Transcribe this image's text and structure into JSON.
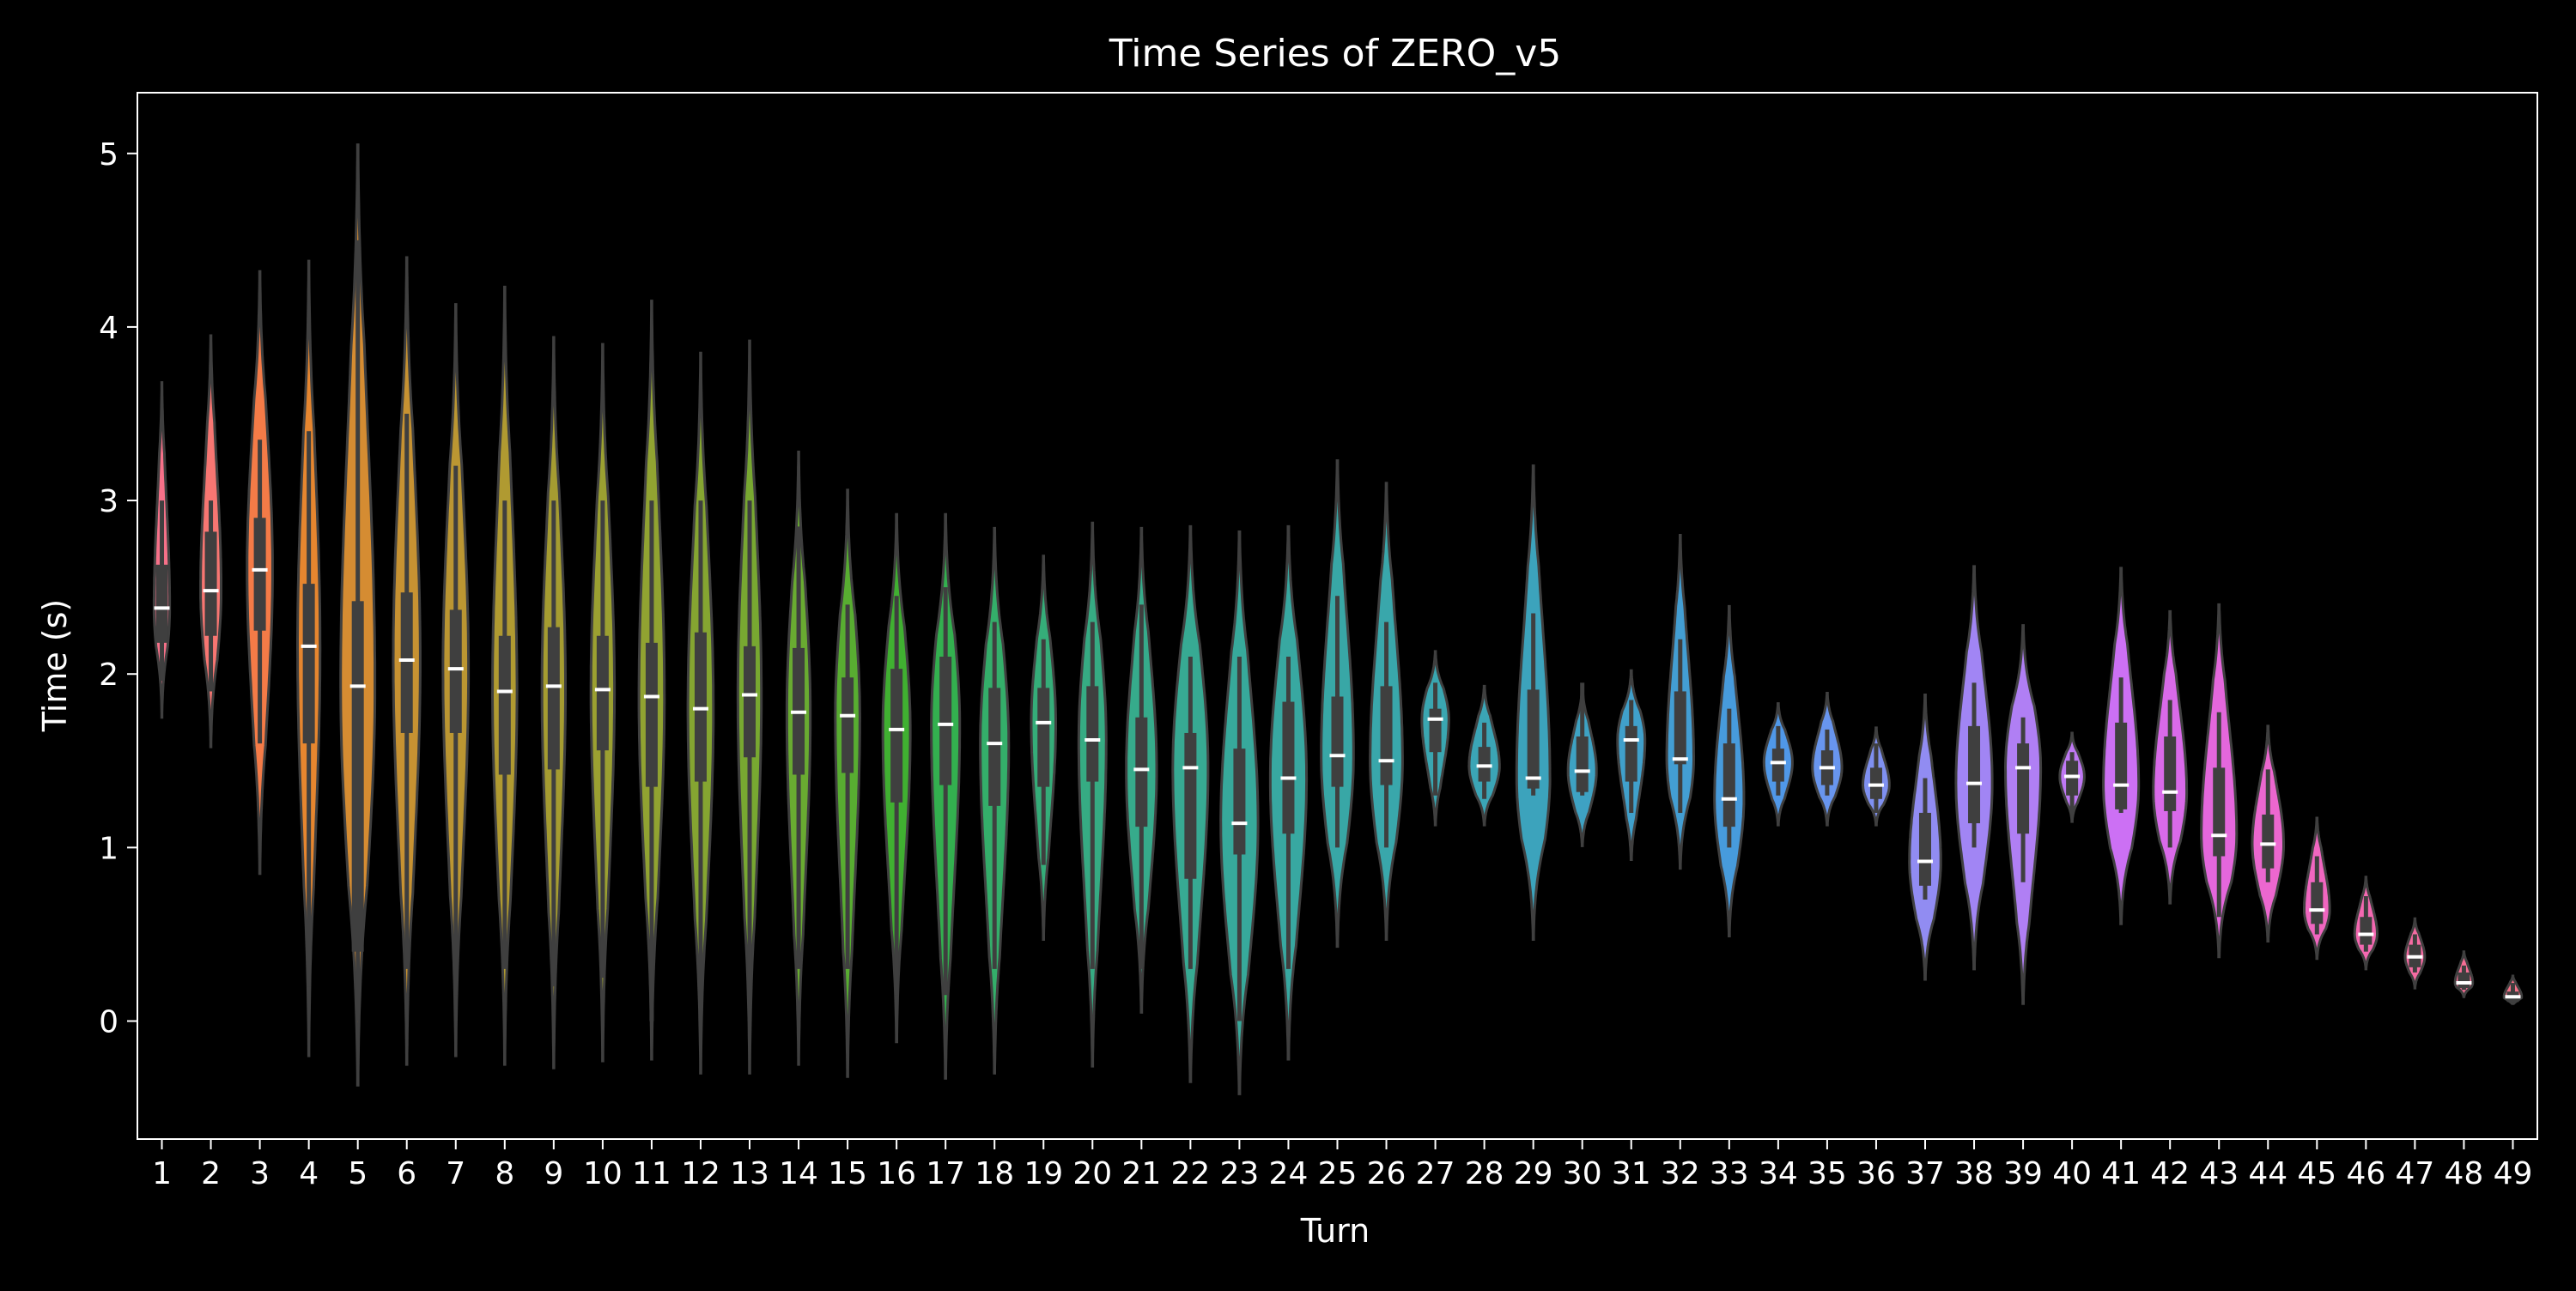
{
  "chart_data": {
    "type": "violin",
    "title": "Time Series of ZERO_v5",
    "xlabel": "Turn",
    "ylabel": "Time (s)",
    "ylim": [
      -0.68,
      5.35
    ],
    "yticks": [
      0,
      1,
      2,
      3,
      4,
      5
    ],
    "grid": false,
    "legend": "none",
    "background": "#000000",
    "categories": [
      "1",
      "2",
      "3",
      "4",
      "5",
      "6",
      "7",
      "8",
      "9",
      "10",
      "11",
      "12",
      "13",
      "14",
      "15",
      "16",
      "17",
      "18",
      "19",
      "20",
      "21",
      "22",
      "23",
      "24",
      "25",
      "26",
      "27",
      "28",
      "29",
      "30",
      "31",
      "32",
      "33",
      "34",
      "35",
      "36",
      "37",
      "38",
      "39",
      "40",
      "41",
      "42",
      "43",
      "44",
      "45",
      "46",
      "47",
      "48",
      "49"
    ],
    "colors": [
      "#f77189",
      "#f77672",
      "#f47b47",
      "#e6862f",
      "#d58c32",
      "#c79232",
      "#bb9632",
      "#b09a31",
      "#a59c31",
      "#9ba031",
      "#91a331",
      "#85a531",
      "#78a831",
      "#69ab31",
      "#58ad31",
      "#40b031",
      "#33b04f",
      "#34ae6a",
      "#35ad79",
      "#36ab83",
      "#36ab8b",
      "#37aa93",
      "#37a99b",
      "#38a8a1",
      "#38a7a6",
      "#39a7ab",
      "#3aa6b1",
      "#3ba5b6",
      "#3ca3bc",
      "#3ea2c3",
      "#40a0cb",
      "#439ed3",
      "#479bdc",
      "#5098e8",
      "#6895ee",
      "#7f90f0",
      "#918cf2",
      "#a185f4",
      "#b07ff4",
      "#bf78f4",
      "#cc70f4",
      "#d96ae9",
      "#e467dc",
      "#ec67cf",
      "#f066c0",
      "#f468b1",
      "#f56ba2",
      "#f66e95",
      "#f77189"
    ],
    "median": [
      2.38,
      2.48,
      2.6,
      2.16,
      1.93,
      2.08,
      2.03,
      1.9,
      1.93,
      1.91,
      1.87,
      1.8,
      1.88,
      1.78,
      1.76,
      1.68,
      1.71,
      1.6,
      1.72,
      1.62,
      1.45,
      1.46,
      1.14,
      1.4,
      1.53,
      1.5,
      1.74,
      1.47,
      1.4,
      1.44,
      1.62,
      1.51,
      1.28,
      1.49,
      1.46,
      1.36,
      0.92,
      1.37,
      1.46,
      1.41,
      1.36,
      1.32,
      1.07,
      1.02,
      0.64,
      0.5,
      0.37,
      0.22,
      0.14
    ],
    "q1": [
      2.18,
      2.22,
      2.25,
      1.6,
      0.4,
      1.66,
      1.66,
      1.42,
      1.45,
      1.56,
      1.35,
      1.38,
      1.52,
      1.42,
      1.43,
      1.26,
      1.36,
      1.24,
      1.35,
      1.38,
      1.12,
      0.82,
      0.96,
      1.08,
      1.35,
      1.36,
      1.55,
      1.38,
      1.34,
      1.32,
      1.38,
      1.48,
      1.12,
      1.38,
      1.36,
      1.28,
      0.78,
      1.14,
      1.08,
      1.3,
      1.22,
      1.21,
      0.95,
      0.88,
      0.56,
      0.44,
      0.31,
      0.19,
      0.11
    ],
    "q3": [
      2.63,
      2.82,
      2.9,
      2.52,
      2.42,
      2.47,
      2.37,
      2.22,
      2.27,
      2.22,
      2.18,
      2.24,
      2.16,
      2.15,
      1.98,
      2.03,
      2.1,
      1.92,
      1.92,
      1.93,
      1.75,
      1.66,
      1.57,
      1.84,
      1.87,
      1.93,
      1.8,
      1.58,
      1.91,
      1.64,
      1.7,
      1.9,
      1.6,
      1.57,
      1.56,
      1.46,
      1.2,
      1.7,
      1.6,
      1.5,
      1.72,
      1.64,
      1.46,
      1.19,
      0.8,
      0.6,
      0.44,
      0.28,
      0.17
    ],
    "wmin": [
      1.96,
      1.9,
      1.6,
      0.2,
      0.0,
      0.3,
      0.15,
      0.3,
      0.2,
      0.25,
      0.0,
      0.0,
      0.0,
      0.3,
      0.3,
      0.15,
      0.15,
      0.3,
      0.9,
      0.3,
      0.3,
      0.3,
      0.0,
      0.3,
      1.0,
      1.0,
      1.3,
      1.28,
      1.3,
      1.3,
      1.2,
      1.2,
      1.0,
      1.3,
      1.3,
      1.2,
      0.7,
      1.0,
      0.8,
      1.2,
      1.2,
      1.0,
      0.6,
      0.8,
      0.5,
      0.4,
      0.28,
      0.18,
      0.1
    ],
    "wmax": [
      3.0,
      3.0,
      3.35,
      3.4,
      4.5,
      3.5,
      3.2,
      3.0,
      3.0,
      3.0,
      3.0,
      3.0,
      3.0,
      2.85,
      2.4,
      2.45,
      2.5,
      2.3,
      2.2,
      2.3,
      2.4,
      2.1,
      2.1,
      2.1,
      2.45,
      2.3,
      1.95,
      1.72,
      2.35,
      1.95,
      1.85,
      2.2,
      1.8,
      1.7,
      1.68,
      1.6,
      1.4,
      1.95,
      1.75,
      1.55,
      1.98,
      1.85,
      1.78,
      1.45,
      0.95,
      0.72,
      0.5,
      0.32,
      0.22
    ],
    "ymin": [
      1.75,
      1.58,
      0.85,
      -0.2,
      -0.37,
      -0.25,
      -0.2,
      -0.25,
      -0.27,
      -0.23,
      -0.22,
      -0.3,
      -0.3,
      -0.25,
      -0.32,
      -0.12,
      -0.33,
      -0.3,
      0.47,
      -0.26,
      0.05,
      -0.35,
      -0.42,
      -0.22,
      0.43,
      0.47,
      1.13,
      1.13,
      0.47,
      1.01,
      0.93,
      0.88,
      0.49,
      1.13,
      1.13,
      1.13,
      0.24,
      0.3,
      0.1,
      1.15,
      0.56,
      0.68,
      0.37,
      0.46,
      0.36,
      0.3,
      0.19,
      0.14,
      0.1
    ],
    "ymax": [
      3.68,
      3.95,
      4.32,
      4.38,
      5.05,
      4.4,
      4.13,
      4.23,
      3.94,
      3.9,
      4.15,
      3.85,
      3.92,
      3.28,
      3.06,
      2.92,
      2.92,
      2.84,
      2.68,
      2.87,
      2.84,
      2.85,
      2.82,
      2.85,
      3.23,
      3.1,
      2.13,
      1.93,
      3.2,
      1.93,
      2.02,
      2.8,
      2.39,
      1.83,
      1.89,
      1.69,
      1.88,
      2.62,
      2.28,
      1.66,
      2.61,
      2.36,
      2.4,
      1.7,
      1.17,
      0.83,
      0.59,
      0.4,
      0.26
    ],
    "maxwidth": [
      0.32,
      0.42,
      0.52,
      0.46,
      0.7,
      0.55,
      0.52,
      0.5,
      0.48,
      0.48,
      0.52,
      0.52,
      0.48,
      0.48,
      0.5,
      0.56,
      0.58,
      0.58,
      0.5,
      0.56,
      0.62,
      0.72,
      0.76,
      0.74,
      0.66,
      0.66,
      0.55,
      0.62,
      0.68,
      0.58,
      0.56,
      0.55,
      0.6,
      0.58,
      0.6,
      0.54,
      0.64,
      0.74,
      0.72,
      0.5,
      0.72,
      0.68,
      0.72,
      0.64,
      0.52,
      0.46,
      0.4,
      0.36,
      0.36
    ]
  }
}
